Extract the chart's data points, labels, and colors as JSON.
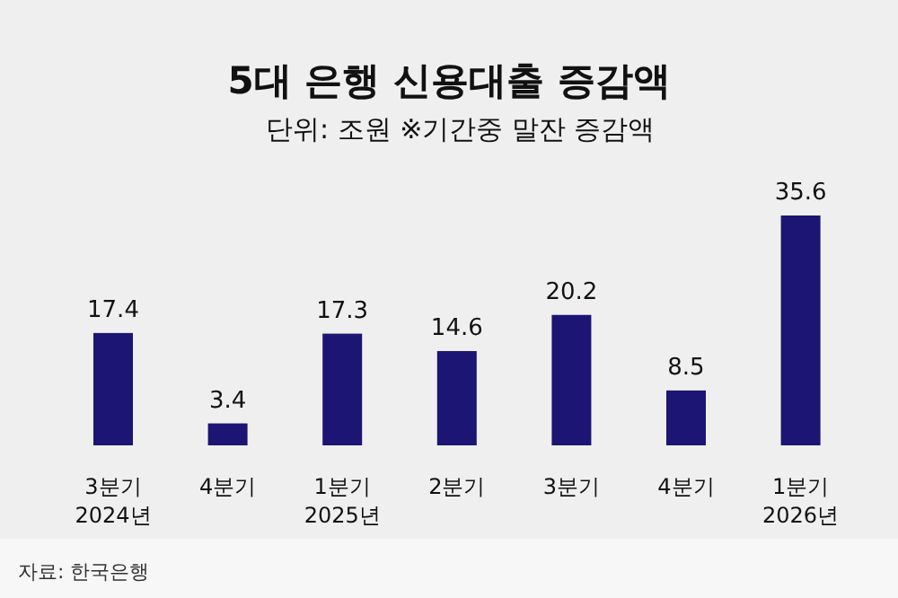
{
  "chart_data": {
    "type": "bar",
    "title": "5대 은행 신용대출 증감액",
    "subtitle": "단위: 조원 ※기간중 말잔 증감액",
    "categories": [
      "3분기\n2024년",
      "4분기",
      "1분기\n2025년",
      "2분기",
      "3분기",
      "4분기",
      "1분기\n2026년"
    ],
    "values": [
      17.4,
      3.4,
      17.3,
      14.6,
      20.2,
      8.5,
      35.6
    ],
    "color": "#1c1573",
    "data_labels": true,
    "annotations": [
      "자료: 한국은행"
    ]
  }
}
